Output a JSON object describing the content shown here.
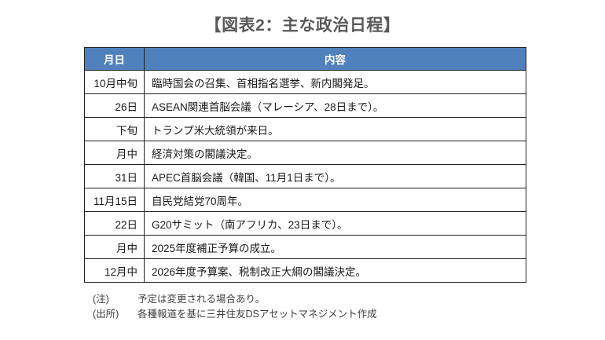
{
  "title": "【図表2：主な政治日程】",
  "table": {
    "headers": [
      "月日",
      "内容"
    ],
    "rows": [
      {
        "date": "10月中旬",
        "content": "臨時国会の召集、首相指名選挙、新内閣発足。"
      },
      {
        "date": "26日",
        "content": "ASEAN関連首脳会議（マレーシア、28日まで）。"
      },
      {
        "date": "下旬",
        "content": "トランプ米大統領が来日。"
      },
      {
        "date": "月中",
        "content": "経済対策の閣議決定。"
      },
      {
        "date": "31日",
        "content": "APEC首脳会議（韓国、11月1日まで）。"
      },
      {
        "date": "11月15日",
        "content": "自民党結党70周年。"
      },
      {
        "date": "22日",
        "content": "G20サミット（南アフリカ、23日まで）。"
      },
      {
        "date": "月中",
        "content": "2025年度補正予算の成立。"
      },
      {
        "date": "12月中",
        "content": "2026年度予算案、税制改正大綱の閣議決定。"
      }
    ]
  },
  "notes": [
    {
      "label": "(注)",
      "text": "予定は変更される場合あり。"
    },
    {
      "label": "(出所)",
      "text": "各種報道を基に三井住友DSアセットマネジメント作成"
    }
  ],
  "colors": {
    "header_bg": "#4f81bd",
    "header_text": "#ffffff",
    "border": "#222222",
    "title_text": "#595959",
    "body_text": "#1a1a1a",
    "note_text": "#3f3f3f",
    "page_bg": "#ffffff"
  }
}
